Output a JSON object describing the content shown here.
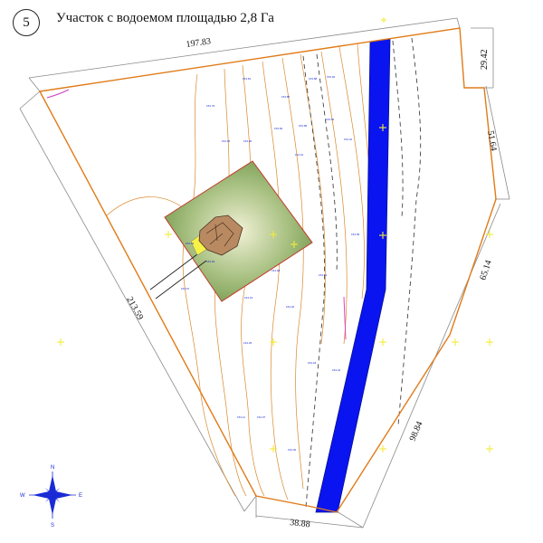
{
  "header": {
    "plot_number": "5",
    "title": "Участок с водоемом площадью 2,8 Га"
  },
  "dimensions": {
    "top": "197.83",
    "top_right": "29.42",
    "right_upper": "51.64",
    "right_middle": "65.14",
    "right_lower": "98.84",
    "bottom": "38.88",
    "left": "213.59"
  },
  "compass": {
    "n": "N",
    "s": "S",
    "w": "W",
    "e": "E"
  },
  "colors": {
    "boundary": "#e07b18",
    "contour": "#d9882a",
    "water": "#0a14f0",
    "building_outline": "#c0392b",
    "green_area": "#7fa05a",
    "marker": "#f7f246",
    "labels": "#1a2bd6"
  },
  "elevation_labels": [
    "153.79",
    "153.81",
    "153.85",
    "153.88",
    "153.92",
    "153.90",
    "153.84",
    "153.86",
    "153.95",
    "154.01",
    "154.05",
    "154.10",
    "153.99",
    "154.03",
    "154.08",
    "154.12",
    "154.15",
    "154.20",
    "154.18",
    "154.22",
    "154.25",
    "154.11",
    "154.07",
    "154.02",
    "153.97",
    "153.93"
  ]
}
